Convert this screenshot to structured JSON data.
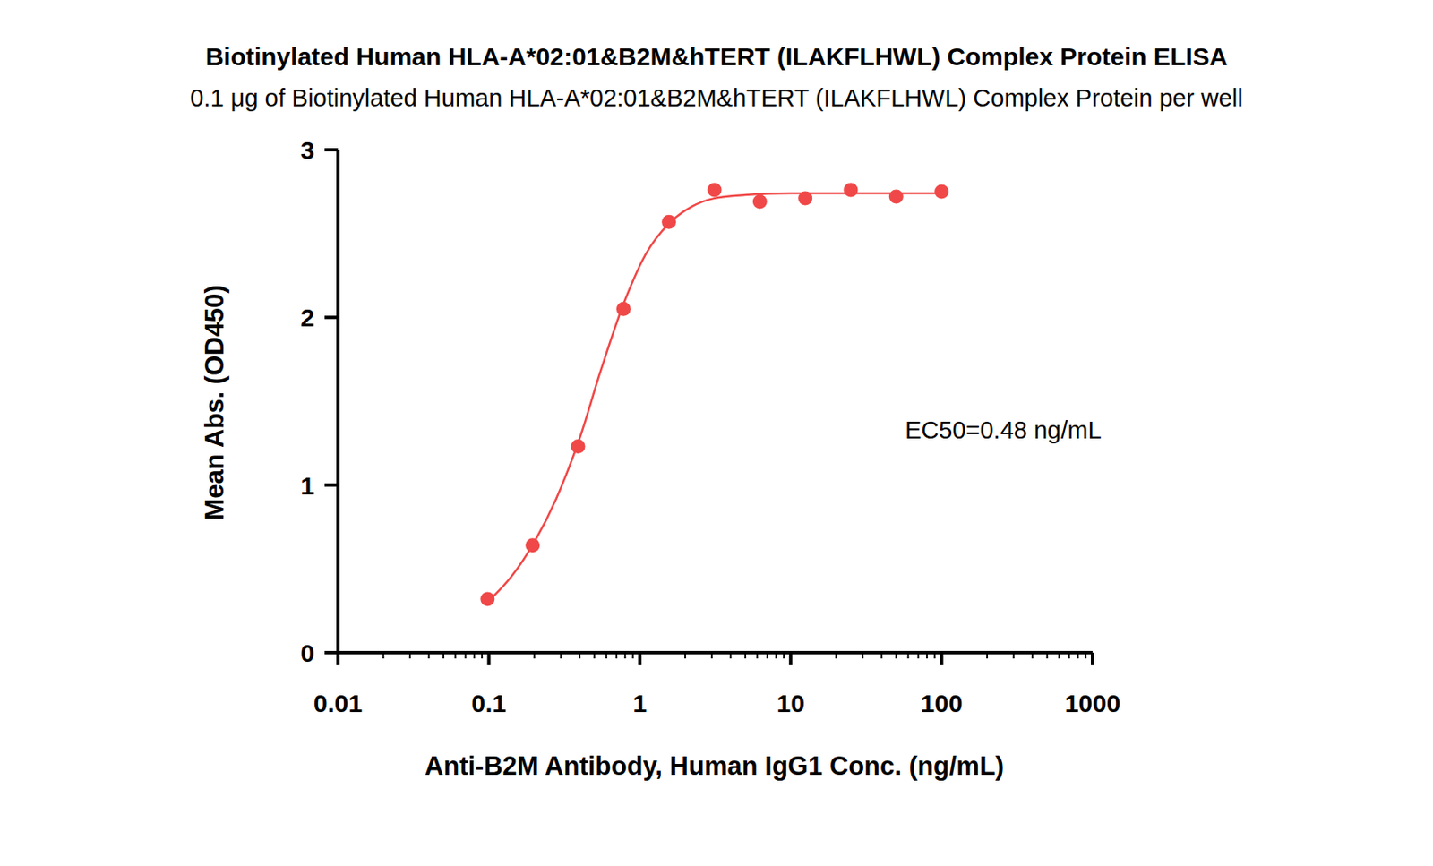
{
  "chart_data": {
    "type": "scatter",
    "title": "Biotinylated Human HLA-A*02:01&B2M&hTERT (ILAKFLHWL) Complex Protein ELISA",
    "subtitle": "0.1 μg of Biotinylated Human HLA-A*02:01&B2M&hTERT (ILAKFLHWL) Complex Protein per well",
    "x_label": "Anti-B2M Antibody, Human IgG1 Conc. (ng/mL)",
    "y_label": "Mean Abs. (OD450)",
    "annotation": "EC50=0.48 ng/mL",
    "log": "x",
    "xlim": [
      0.01,
      1000
    ],
    "xticks": [
      0.01,
      0.1,
      1,
      10,
      100,
      1000
    ],
    "ylim": [
      0,
      3
    ],
    "yticks": [
      0,
      1,
      2,
      3
    ],
    "grid": false,
    "series": [
      {
        "type": "scatter",
        "marker": "circle",
        "color": "#f04848",
        "x": [
          0.098,
          0.195,
          0.39,
          0.78,
          1.56,
          3.125,
          6.25,
          12.5,
          25,
          50,
          100
        ],
        "values": [
          0.32,
          0.64,
          1.23,
          2.05,
          2.57,
          2.76,
          2.69,
          2.71,
          2.76,
          2.72,
          2.75
        ]
      },
      {
        "type": "line",
        "line_style": "solid",
        "color": "#f04848",
        "x": [
          0.098,
          0.14,
          0.2,
          0.28,
          0.4,
          0.55,
          0.78,
          1.1,
          1.56,
          2.2,
          3.1,
          5,
          10,
          100
        ],
        "values": [
          0.3,
          0.45,
          0.66,
          0.92,
          1.28,
          1.68,
          2.08,
          2.38,
          2.56,
          2.66,
          2.71,
          2.73,
          2.74,
          2.74
        ]
      }
    ]
  }
}
